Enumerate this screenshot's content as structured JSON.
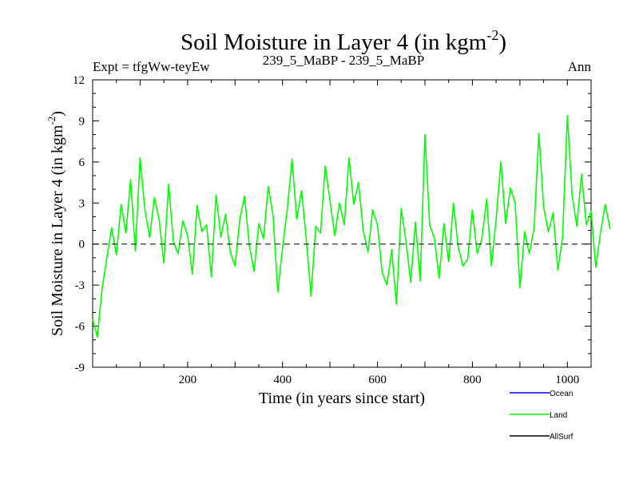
{
  "chart_data": {
    "type": "line",
    "title": "Soil Moisture in Layer 4 (in kgm",
    "title_sup": "-2",
    "title_tail": ")",
    "subtitle_left": "Expt = tfgWw-teyEw",
    "subtitle_center": "239_5_MaBP - 239_5_MaBP",
    "subtitle_right": "Ann",
    "xlabel": "Time (in years since start)",
    "ylabel": "Soil Moisture in Layer 4 (in kgm",
    "ylabel_sup": "-2",
    "ylabel_tail": ")",
    "xlim": [
      0,
      1050
    ],
    "ylim": [
      -9,
      12
    ],
    "x_ticks": [
      200,
      400,
      600,
      800,
      1000
    ],
    "x_tick_labels": [
      "200",
      "400",
      "600",
      "800",
      "1000"
    ],
    "y_ticks": [
      -9,
      -6,
      -3,
      0,
      3,
      6,
      9,
      12
    ],
    "y_tick_labels": [
      "-9",
      "-6",
      "-3",
      "0",
      "3",
      "6",
      "9",
      "12"
    ],
    "zero_line": 0,
    "legend": [
      {
        "name": "Ocean",
        "color": "#0000ff"
      },
      {
        "name": "Land",
        "color": "#00ff00"
      },
      {
        "name": "AllSurf",
        "color": "#000000"
      }
    ],
    "series": [
      {
        "name": "Land",
        "color": "#00ff00",
        "x_start": 0,
        "x_step": 10,
        "values": [
          -5.5,
          -6.8,
          -3.2,
          -1.0,
          1.2,
          -0.8,
          2.9,
          0.8,
          4.7,
          -0.5,
          6.3,
          2.5,
          0.5,
          3.4,
          1.8,
          -1.4,
          4.4,
          0.2,
          -0.7,
          1.7,
          0.6,
          -2.2,
          2.8,
          0.9,
          1.4,
          -2.4,
          3.6,
          0.5,
          2.2,
          -0.6,
          -1.6,
          1.8,
          3.5,
          -0.1,
          -2.0,
          1.5,
          0.4,
          4.2,
          2.1,
          -3.5,
          -0.3,
          2.6,
          6.2,
          1.8,
          3.9,
          0.4,
          -3.8,
          1.3,
          0.8,
          5.7,
          3.2,
          0.6,
          3.0,
          1.4,
          6.3,
          2.9,
          4.5,
          1.0,
          -0.6,
          2.5,
          1.4,
          -2.1,
          -3.0,
          -0.4,
          -4.4,
          2.6,
          0.2,
          -2.8,
          1.6,
          -2.7,
          8.0,
          1.4,
          0.4,
          -2.5,
          1.5,
          -1.3,
          3.0,
          -0.2,
          -1.6,
          -1.1,
          2.5,
          -0.7,
          0.4,
          3.3,
          -1.6,
          1.8,
          6.0,
          1.5,
          4.1,
          3.0,
          -3.2,
          0.9,
          -0.7,
          1.2,
          8.1,
          2.7,
          0.9,
          2.3,
          -1.9,
          0.5,
          9.4,
          3.6,
          1.3,
          5.1,
          1.4,
          2.4,
          -1.7,
          0.9,
          2.9,
          1.1
        ]
      }
    ]
  }
}
